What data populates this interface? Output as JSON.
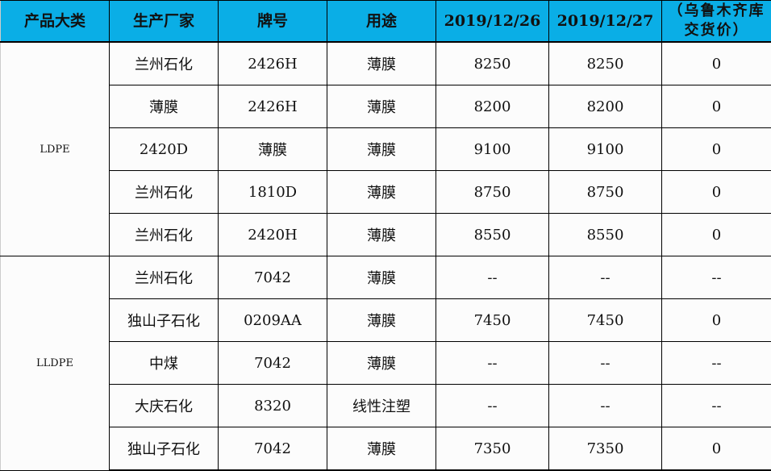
{
  "header": [
    "产品大类",
    "生产厂家",
    "牌号",
    "用途",
    "2019/12/26",
    "2019/12/27",
    "（乌鲁木齐库交货价）"
  ],
  "groups": [
    {
      "category": "LDPE",
      "rows": [
        [
          "兰州石化",
          "2426H",
          "薄膜",
          "8250",
          "8250",
          "0"
        ],
        [
          "薄膜",
          "2426H",
          "薄膜",
          "8200",
          "8200",
          "0"
        ],
        [
          "2420D",
          "薄膜",
          "薄膜",
          "9100",
          "9100",
          "0"
        ],
        [
          "兰州石化",
          "1810D",
          "薄膜",
          "8750",
          "8750",
          "0"
        ],
        [
          "兰州石化",
          "2420H",
          "薄膜",
          "8550",
          "8550",
          "0"
        ]
      ]
    },
    {
      "category": "LLDPE",
      "rows": [
        [
          "兰州石化",
          "7042",
          "薄膜",
          "--",
          "--",
          "--"
        ],
        [
          "独山子石化",
          "0209AA",
          "薄膜",
          "7450",
          "7450",
          "0"
        ],
        [
          "中煤",
          "7042",
          "薄膜",
          "--",
          "--",
          "--"
        ],
        [
          "大庆石化",
          "8320",
          "线性注塑",
          "--",
          "--",
          "--"
        ],
        [
          "独山子石化",
          "7042",
          "薄膜",
          "7350",
          "7350",
          "0"
        ]
      ]
    }
  ],
  "colors": {
    "header_bg": "#0aaee6"
  }
}
